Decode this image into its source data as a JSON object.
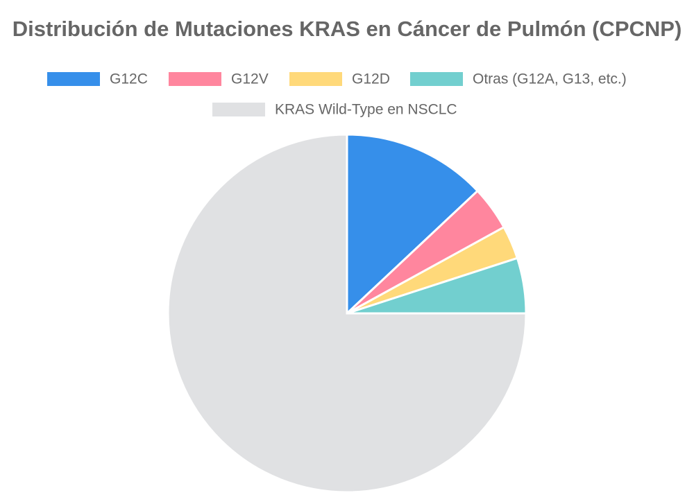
{
  "chart_data": {
    "type": "pie",
    "title": "Distribución de Mutaciones KRAS en Cáncer de Pulmón (CPCNP)",
    "categories": [
      "G12C",
      "G12V",
      "G12D",
      "Otras (G12A, G13, etc.)",
      "KRAS Wild-Type en NSCLC"
    ],
    "values": [
      13,
      4,
      3,
      5,
      75
    ],
    "colors": [
      "#368fea",
      "#ff869e",
      "#ffd97a",
      "#72cfcf",
      "#e0e1e3"
    ]
  }
}
